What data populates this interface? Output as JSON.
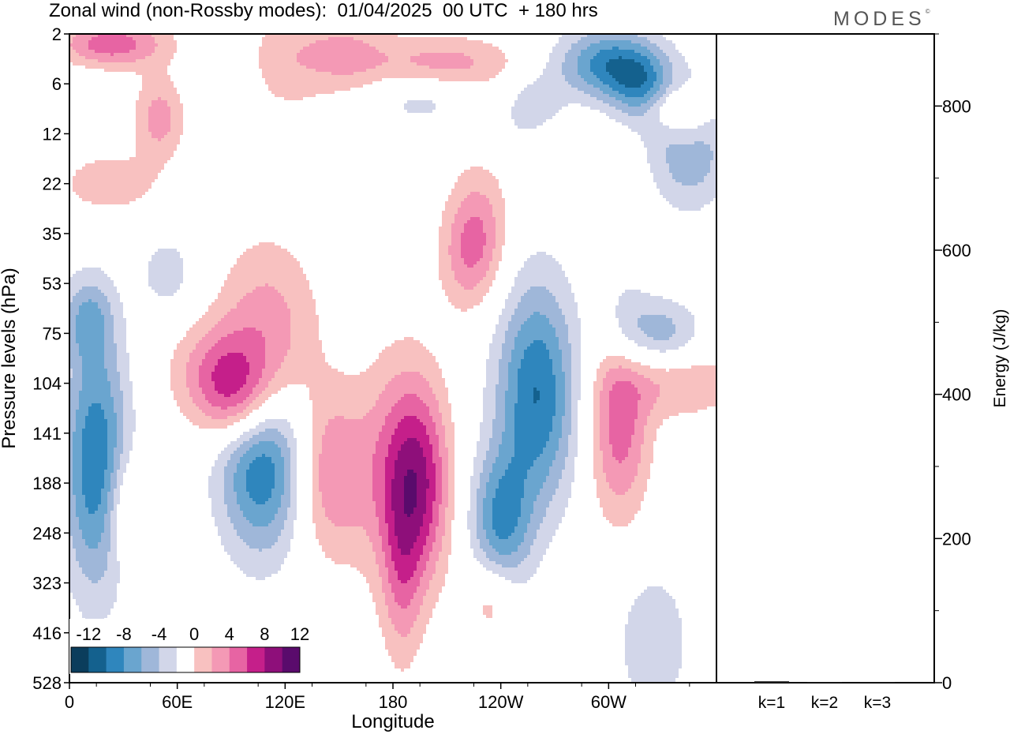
{
  "title": "Zonal wind (non-Rossby modes):  01/04/2025  00 UTC  + 180 hrs",
  "logo": "MODES",
  "logo_mark": "©",
  "chart_data": [
    {
      "type": "heatmap",
      "title": "Zonal wind (non-Rossby modes):  01/04/2025  00 UTC  + 180 hrs",
      "xlabel": "Longitude",
      "ylabel": "Pressure levels (hPa)",
      "x_ticks": [
        "0",
        "60E",
        "120E",
        "180",
        "120W",
        "60W"
      ],
      "x_tick_degrees": [
        0,
        60,
        120,
        180,
        240,
        300
      ],
      "xlim": [
        0,
        360
      ],
      "y_ticks": [
        "2",
        "6",
        "12",
        "22",
        "35",
        "53",
        "75",
        "104",
        "141",
        "188",
        "248",
        "323",
        "416",
        "528"
      ],
      "y_level_index_range": [
        0,
        13
      ],
      "colorbar": {
        "labels": [
          "-12",
          "-8",
          "-4",
          "0",
          "4",
          "8",
          "12"
        ],
        "levels": [
          -14,
          -12,
          -10,
          -8,
          -6,
          -4,
          -2,
          2,
          4,
          6,
          8,
          10,
          12,
          14
        ],
        "colors": [
          "#0b3d5c",
          "#14618e",
          "#2f86bd",
          "#6aa5cf",
          "#9fb7d9",
          "#d2d6e9",
          "#ffffff",
          "#f8c1c0",
          "#f499b5",
          "#e764a3",
          "#c51f8a",
          "#8e0f7a",
          "#5a0b6c"
        ]
      },
      "blobs": [
        {
          "lon": 30,
          "lev": 0.2,
          "rlon": 20,
          "rlev": 0.35,
          "value": 5
        },
        {
          "lon": 22,
          "lev": 3.0,
          "rlon": 18,
          "rlev": 0.4,
          "value": 4
        },
        {
          "lon": 50,
          "lev": 1.7,
          "rlon": 10,
          "rlev": 0.6,
          "value": 5
        },
        {
          "lon": 120,
          "lev": 0.5,
          "rlon": 15,
          "rlev": 0.8,
          "value": 3
        },
        {
          "lon": 153,
          "lev": 0.4,
          "rlon": 17,
          "rlev": 0.6,
          "value": 4
        },
        {
          "lon": 208,
          "lev": 0.6,
          "rlon": 30,
          "rlev": 0.4,
          "value": 5
        },
        {
          "lon": 265,
          "lev": 2.3,
          "rlon": 12,
          "rlev": 0.6,
          "value": 4
        },
        {
          "lon": 300,
          "lev": 0.6,
          "rlon": 20,
          "rlev": 0.5,
          "value": -9
        },
        {
          "lon": 318,
          "lev": 1.1,
          "rlon": 12,
          "rlev": 0.5,
          "value": -6
        },
        {
          "lon": 345,
          "lev": 2.2,
          "rlon": 14,
          "rlev": 0.8,
          "value": -9
        },
        {
          "lon": 260,
          "lev": 1.7,
          "rlon": 12,
          "rlev": 0.6,
          "value": -5
        },
        {
          "lon": 195,
          "lev": 1.3,
          "rlon": 22,
          "rlev": 0.4,
          "value": -3
        },
        {
          "lon": 345,
          "lev": 2.0,
          "rlon": 10,
          "rlev": 0.6,
          "value": 5
        },
        {
          "lon": 338,
          "lev": 1.5,
          "rlon": 12,
          "rlev": 0.3,
          "value": 5
        },
        {
          "lon": 228,
          "lev": 3.8,
          "rlon": 12,
          "rlev": 0.9,
          "value": 4
        },
        {
          "lon": 10,
          "lev": 5.7,
          "rlon": 10,
          "rlev": 0.6,
          "value": -5
        },
        {
          "lon": 55,
          "lev": 4.8,
          "rlon": 12,
          "rlev": 0.6,
          "value": -3
        },
        {
          "lon": 110,
          "lev": 5.8,
          "rlon": 20,
          "rlev": 1.2,
          "value": 5
        },
        {
          "lon": 88,
          "lev": 6.8,
          "rlon": 20,
          "rlev": 0.7,
          "value": 7
        },
        {
          "lon": 95,
          "lev": 7.5,
          "rlon": 15,
          "rlev": 0.6,
          "value": 5
        },
        {
          "lon": 15,
          "lev": 8.6,
          "rlon": 13,
          "rlev": 1.8,
          "value": -10
        },
        {
          "lon": 30,
          "lev": 9.5,
          "rlon": 8,
          "rlev": 0.8,
          "value": 4
        },
        {
          "lon": 107,
          "lev": 8.6,
          "rlon": 17,
          "rlev": 1.3,
          "value": -10
        },
        {
          "lon": 145,
          "lev": 8.8,
          "rlon": 14,
          "rlev": 1.2,
          "value": 6
        },
        {
          "lon": 182,
          "lev": 8.8,
          "rlon": 15,
          "rlev": 1.6,
          "value": 6
        },
        {
          "lon": 196,
          "lev": 9.0,
          "rlon": 12,
          "rlev": 1.4,
          "value": 7
        },
        {
          "lon": 185,
          "lev": 11.0,
          "rlon": 8,
          "rlev": 1.3,
          "value": 4
        },
        {
          "lon": 260,
          "lev": 7.2,
          "rlon": 16,
          "rlev": 1.6,
          "value": -10
        },
        {
          "lon": 240,
          "lev": 9.8,
          "rlon": 12,
          "rlev": 1.0,
          "value": -8
        },
        {
          "lon": 306,
          "lev": 7.9,
          "rlon": 12,
          "rlev": 1.3,
          "value": 7
        },
        {
          "lon": 340,
          "lev": 7.0,
          "rlon": 25,
          "rlev": 0.5,
          "value": 4
        },
        {
          "lon": 330,
          "lev": 6.0,
          "rlon": 15,
          "rlev": 0.5,
          "value": -5
        },
        {
          "lon": 310,
          "lev": 5.7,
          "rlon": 10,
          "rlev": 0.7,
          "value": -3
        },
        {
          "lon": 325,
          "lev": 12.2,
          "rlon": 14,
          "rlev": 1.0,
          "value": -4
        },
        {
          "lon": 235,
          "lev": 11.3,
          "rlon": 10,
          "rlev": 0.6,
          "value": 4
        },
        {
          "lon": 222,
          "lev": 4.5,
          "rlon": 12,
          "rlev": 0.8,
          "value": 4
        },
        {
          "lon": 14,
          "lev": 0.2,
          "rlon": 18,
          "rlev": 0.3,
          "value": 3
        }
      ]
    },
    {
      "type": "bar",
      "categories": [
        "k=1",
        "k=2",
        "k=3"
      ],
      "values": [
        2,
        1,
        1
      ],
      "ylabel": "Energy (J/kg)",
      "ylim": [
        0,
        900
      ],
      "y_ticks": [
        0,
        200,
        400,
        600,
        800
      ],
      "y_minor_ticks": [
        100,
        300,
        500,
        700,
        900
      ]
    }
  ]
}
